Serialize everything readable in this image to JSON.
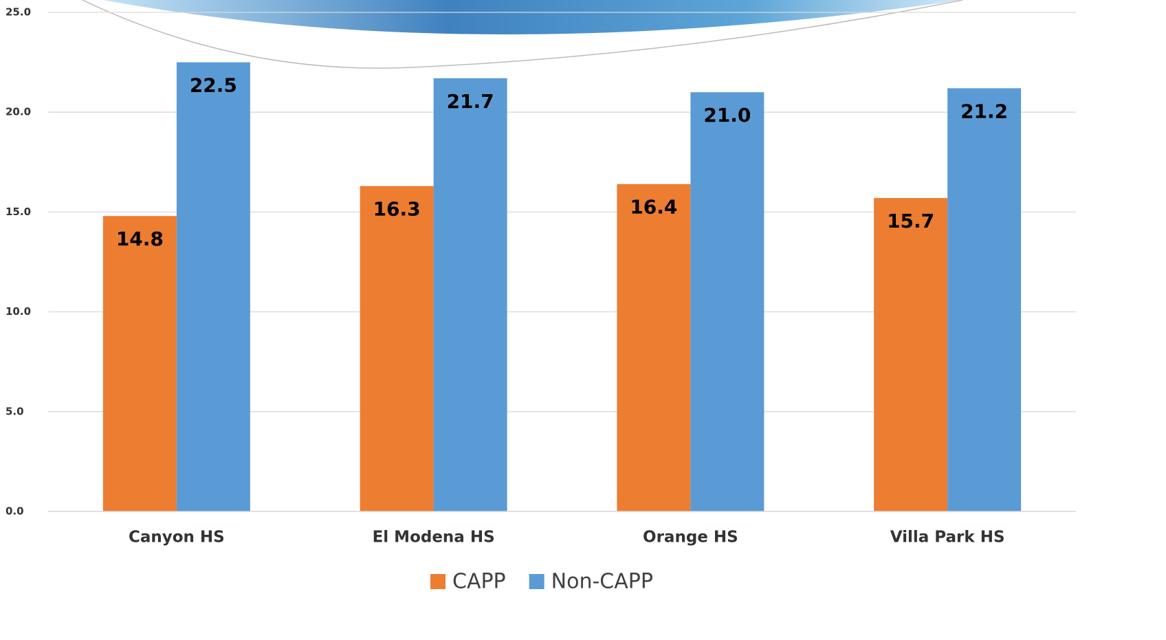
{
  "chart_data": {
    "type": "bar",
    "categories": [
      "Canyon HS",
      "El Modena HS",
      "Orange HS",
      "Villa Park HS"
    ],
    "series": [
      {
        "name": "CAPP",
        "color": "#ed7d31",
        "values": [
          14.8,
          16.3,
          16.4,
          15.7
        ],
        "value_labels": [
          "14.8",
          "16.3",
          "16.4",
          "15.7"
        ]
      },
      {
        "name": "Non-CAPP",
        "color": "#5b9bd5",
        "values": [
          22.5,
          21.7,
          21.0,
          21.2
        ],
        "value_labels": [
          "22.5",
          "21.7",
          "21.0",
          "21.2"
        ]
      }
    ],
    "ylim": [
      0,
      25
    ],
    "yticks": [
      {
        "value": 0,
        "label": "0.0"
      },
      {
        "value": 5,
        "label": "5.0"
      },
      {
        "value": 10,
        "label": "10.0"
      },
      {
        "value": 15,
        "label": "15.0"
      },
      {
        "value": 20,
        "label": "20.0"
      },
      {
        "value": 25,
        "label": "25.0"
      }
    ],
    "grid": true,
    "legend": "bottom"
  }
}
